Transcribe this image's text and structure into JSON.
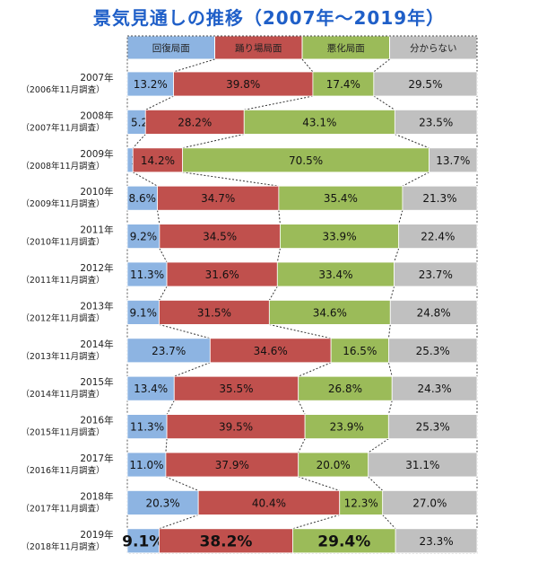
{
  "title": "景気見通しの推移（2007年～2019年）",
  "categories_header": [
    "回復局面",
    "踊り場局面",
    "悪化局面",
    "分からない"
  ],
  "colors": {
    "recovery": "#8db4e2",
    "plateau": "#c0504d",
    "worsening": "#9bbb59",
    "unknown": "#c0c0c0",
    "title": "#1f5fc8"
  },
  "chart_data": {
    "type": "bar",
    "orientation": "horizontal-stacked-100",
    "title": "景気見通しの推移（2007年～2019年）",
    "series_names": [
      "回復局面",
      "踊り場局面",
      "悪化局面",
      "分からない"
    ],
    "rows": [
      {
        "year": "2007年",
        "survey": "（2006年11月調査）",
        "values": [
          13.2,
          39.8,
          17.4,
          29.5
        ]
      },
      {
        "year": "2008年",
        "survey": "（2007年11月調査）",
        "values": [
          5.2,
          28.2,
          43.1,
          23.5
        ]
      },
      {
        "year": "2009年",
        "survey": "（2008年11月調査）",
        "values": [
          1.6,
          14.2,
          70.5,
          13.7
        ]
      },
      {
        "year": "2010年",
        "survey": "（2009年11月調査）",
        "values": [
          8.6,
          34.7,
          35.4,
          21.3
        ]
      },
      {
        "year": "2011年",
        "survey": "（2010年11月調査）",
        "values": [
          9.2,
          34.5,
          33.9,
          22.4
        ]
      },
      {
        "year": "2012年",
        "survey": "（2011年11月調査）",
        "values": [
          11.3,
          31.6,
          33.4,
          23.7
        ]
      },
      {
        "year": "2013年",
        "survey": "（2012年11月調査）",
        "values": [
          9.1,
          31.5,
          34.6,
          24.8
        ]
      },
      {
        "year": "2014年",
        "survey": "（2013年11月調査）",
        "values": [
          23.7,
          34.6,
          16.5,
          25.3
        ]
      },
      {
        "year": "2015年",
        "survey": "（2014年11月調査）",
        "values": [
          13.4,
          35.5,
          26.8,
          24.3
        ]
      },
      {
        "year": "2016年",
        "survey": "（2015年11月調査）",
        "values": [
          11.3,
          39.5,
          23.9,
          25.3
        ]
      },
      {
        "year": "2017年",
        "survey": "（2016年11月調査）",
        "values": [
          11.0,
          37.9,
          20.0,
          31.1
        ]
      },
      {
        "year": "2018年",
        "survey": "（2017年11月調査）",
        "values": [
          20.3,
          40.4,
          12.3,
          27.0
        ]
      },
      {
        "year": "2019年",
        "survey": "（2018年11月調査）",
        "values": [
          9.1,
          38.2,
          29.4,
          23.3
        ]
      }
    ],
    "xlim": [
      0,
      100
    ],
    "legend": "top",
    "grid": false
  }
}
